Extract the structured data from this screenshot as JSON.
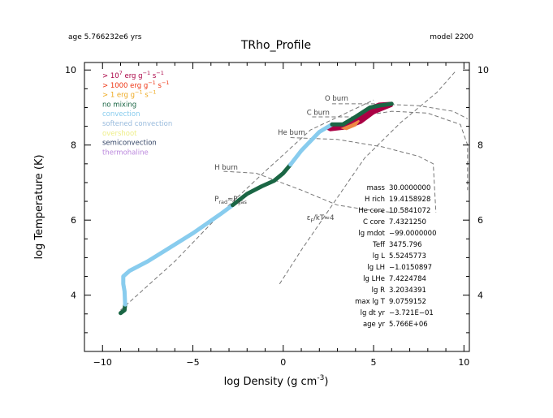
{
  "header": {
    "age": "age 5.766232e6 yrs",
    "model": "model 2200",
    "title": "TRho_Profile"
  },
  "chart_data": {
    "type": "line",
    "title": "TRho_Profile",
    "xlabel": "log Density (g cm",
    "xlabel_sup": "-3",
    "xlabel_end": ")",
    "ylabel": "log Temperature (K)",
    "xlim": [
      -11,
      10.3
    ],
    "ylim": [
      2.5,
      10.2
    ],
    "xticks": [
      -10,
      -5,
      0,
      5,
      10
    ],
    "xtick_labels": [
      "−10",
      "−5",
      "0",
      "5",
      "10"
    ],
    "yticks": [
      4,
      6,
      8,
      10
    ],
    "ytick_labels": [
      "4",
      "6",
      "8",
      "10"
    ],
    "legend_position": "top-left",
    "legend": [
      {
        "label_pre": "> 10",
        "sup": "7",
        "label_post": " erg g",
        "sup2": "−1",
        "label_end": " s",
        "sup3": "−1",
        "color": "#aa0044"
      },
      {
        "label_pre": "> 1000 erg g",
        "sup": "−1",
        "label_post": " s",
        "sup2": "−1",
        "label_end": "",
        "sup3": "",
        "color": "#ee3311"
      },
      {
        "label_pre": "> 1 erg g",
        "sup": "−1",
        "label_post": " s",
        "sup2": "−1",
        "label_end": "",
        "sup3": "",
        "color": "#eeaa22"
      },
      {
        "label_pre": "no mixing",
        "color": "#1a6644"
      },
      {
        "label_pre": "convection",
        "color": "#88ccee"
      },
      {
        "label_pre": "softened convection",
        "color": "#99bbdd"
      },
      {
        "label_pre": "overshoot",
        "color": "#eeee88"
      },
      {
        "label_pre": "semiconvection",
        "color": "#334466"
      },
      {
        "label_pre": "thermohaline",
        "color": "#bb88dd"
      }
    ],
    "burn_lines": [
      {
        "name": "H burn",
        "points": [
          [
            -3.3,
            7.3
          ],
          [
            -1.5,
            7.25
          ],
          [
            1.0,
            6.8
          ],
          [
            3.0,
            6.4
          ],
          [
            5.0,
            6.25
          ],
          [
            6.2,
            6.2
          ]
        ]
      },
      {
        "name": "He burn",
        "points": [
          [
            0.4,
            8.2
          ],
          [
            3.0,
            8.15
          ],
          [
            5.5,
            7.95
          ],
          [
            7.5,
            7.7
          ],
          [
            8.3,
            7.5
          ],
          [
            8.45,
            6.2
          ]
        ]
      },
      {
        "name": "C burn",
        "points": [
          [
            1.6,
            8.75
          ],
          [
            4.0,
            8.75
          ],
          [
            6.0,
            8.9
          ],
          [
            8.0,
            8.85
          ],
          [
            9.8,
            8.55
          ],
          [
            10.2,
            8.0
          ],
          [
            10.2,
            6.8
          ]
        ]
      },
      {
        "name": "O burn",
        "points": [
          [
            2.7,
            9.1
          ],
          [
            5.0,
            9.1
          ],
          [
            7.5,
            9.05
          ],
          [
            9.4,
            8.9
          ],
          [
            10.2,
            8.7
          ]
        ]
      }
    ],
    "degeneracy_line": {
      "name": "εF/kT≈4",
      "points": [
        [
          -0.2,
          4.3
        ],
        [
          1.0,
          5.2
        ],
        [
          3.0,
          6.6
        ],
        [
          4.5,
          7.65
        ],
        [
          6.5,
          8.6
        ],
        [
          8.5,
          9.4
        ],
        [
          9.5,
          9.95
        ]
      ]
    },
    "prad_pgas_line": {
      "name": "Prad≈Pgas",
      "points": [
        [
          -9.0,
          3.6
        ],
        [
          -6.0,
          4.9
        ],
        [
          -3.0,
          6.4
        ],
        [
          -1.0,
          7.3
        ],
        [
          1.5,
          8.4
        ],
        [
          5.0,
          9.2
        ]
      ]
    },
    "labels": {
      "o_burn": "O burn",
      "c_burn": "C burn",
      "he_burn": "He burn",
      "h_burn": "H burn",
      "prad": "P",
      "prad_sub": "rad",
      "prad_eq": "≈P",
      "prad_sub2": "gas",
      "degen": "ε",
      "degen_sub": "F",
      "degen_rest": "/kT≈4"
    },
    "series": [
      {
        "name": "no mixing",
        "color": "#1a6644",
        "points": [
          [
            -9.0,
            3.52
          ],
          [
            -8.78,
            3.6
          ],
          [
            -8.75,
            3.75
          ]
        ]
      },
      {
        "name": "convection",
        "color": "#88ccee",
        "points": [
          [
            -8.75,
            3.75
          ],
          [
            -8.78,
            4.1
          ],
          [
            -8.85,
            4.3
          ],
          [
            -8.85,
            4.5
          ],
          [
            -8.5,
            4.65
          ],
          [
            -7.5,
            4.9
          ],
          [
            -6.5,
            5.2
          ],
          [
            -5.0,
            5.65
          ],
          [
            -3.5,
            6.15
          ],
          [
            -2.8,
            6.4
          ]
        ]
      },
      {
        "name": "no mixing",
        "color": "#1a6644",
        "points": [
          [
            -2.8,
            6.4
          ],
          [
            -2.0,
            6.7
          ],
          [
            -1.2,
            6.9
          ],
          [
            -0.5,
            7.05
          ],
          [
            0.0,
            7.25
          ],
          [
            0.4,
            7.48
          ]
        ]
      },
      {
        "name": "convection",
        "color": "#88ccee",
        "points": [
          [
            0.4,
            7.48
          ],
          [
            1.0,
            7.85
          ],
          [
            2.0,
            8.35
          ],
          [
            2.7,
            8.55
          ]
        ]
      },
      {
        "name": "no mixing",
        "color": "#1a6644",
        "points": [
          [
            2.7,
            8.55
          ],
          [
            3.3,
            8.55
          ],
          [
            4.0,
            8.75
          ],
          [
            4.8,
            9.0
          ],
          [
            5.3,
            9.05
          ],
          [
            6.0,
            9.1
          ]
        ]
      }
    ],
    "burn_region": {
      "color": "#aa0044",
      "points": [
        [
          2.4,
          8.45
        ],
        [
          2.9,
          8.5
        ],
        [
          3.8,
          8.6
        ],
        [
          4.5,
          8.85
        ],
        [
          4.8,
          9.0
        ],
        [
          5.3,
          9.1
        ],
        [
          6.0,
          9.12
        ],
        [
          6.0,
          9.05
        ],
        [
          5.5,
          8.95
        ],
        [
          5.0,
          8.85
        ],
        [
          4.3,
          8.6
        ],
        [
          3.5,
          8.45
        ],
        [
          2.6,
          8.4
        ]
      ]
    },
    "overshoot_region": {
      "color": "#ee8844",
      "points": [
        [
          3.3,
          8.45
        ],
        [
          3.8,
          8.55
        ],
        [
          4.2,
          8.65
        ],
        [
          4.0,
          8.52
        ],
        [
          3.5,
          8.42
        ]
      ]
    },
    "info": {
      "labels": [
        "mass",
        "H rich",
        "He core",
        "C core",
        "lg mdot",
        "Teff",
        "lg L",
        "lg LH",
        "lg LHe",
        "lg R",
        "max lg T",
        "lg dt yr",
        "age yr"
      ],
      "values": [
        "30.0000000",
        "19.4158928",
        "10.5841072",
        "7.4321250",
        "−99.0000000",
        "3475.796",
        "5.5245773",
        "−1.0150897",
        "7.4224784",
        "3.2034391",
        "9.0759152",
        "−3.721E−01",
        "5.766E+06"
      ]
    }
  }
}
